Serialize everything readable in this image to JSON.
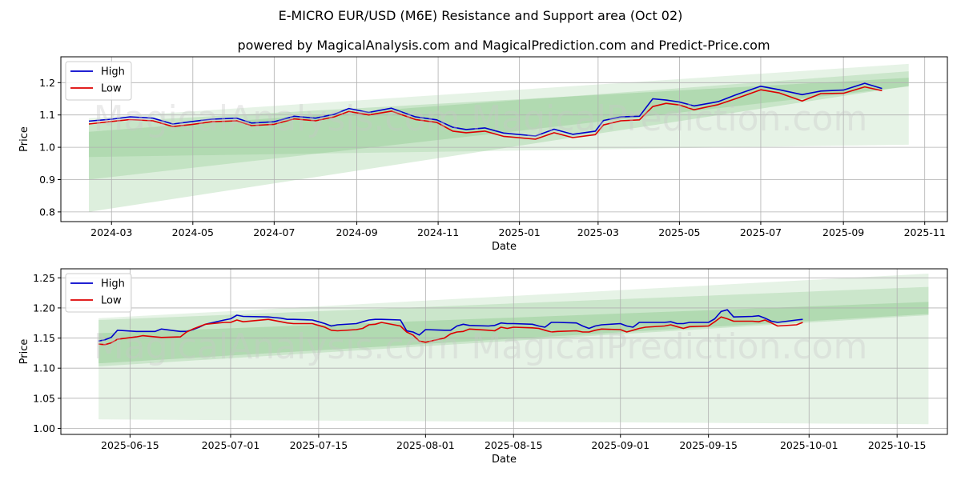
{
  "figure": {
    "title": "E-MICRO EUR/USD (M6E) Resistance and Support area (Oct 02)",
    "subtitle": "powered by MagicalAnalysis.com and MagicalPrediction.com and Predict-Price.com",
    "watermark": "MagicalAnalysis.com   MagicalPrediction.com"
  },
  "colors": {
    "high": "#0000cc",
    "low": "#dd0000",
    "band": "#2e9b2e",
    "grid": "#b0b0b0"
  },
  "chart_data": [
    {
      "type": "line",
      "xlabel": "Date",
      "ylabel": "Price",
      "grid": true,
      "legend": "top-left",
      "legend_entries": [
        "High",
        "Low"
      ],
      "xlim": [
        "2024-01-23",
        "2025-11-18"
      ],
      "ylim": [
        0.77,
        1.28
      ],
      "x_ticks": [
        "2024-03-01",
        "2024-05-01",
        "2024-07-01",
        "2024-09-01",
        "2024-11-01",
        "2025-01-01",
        "2025-03-01",
        "2025-05-01",
        "2025-07-01",
        "2025-09-01",
        "2025-11-01"
      ],
      "x_tick_labels": [
        "2024-03",
        "2024-05",
        "2024-07",
        "2024-09",
        "2024-11",
        "2025-01",
        "2025-03",
        "2025-05",
        "2025-07",
        "2025-09",
        "2025-11"
      ],
      "y_ticks": [
        0.8,
        0.9,
        1.0,
        1.1,
        1.2
      ],
      "y_tick_labels": [
        "0.8",
        "0.9",
        "1.0",
        "1.1",
        "1.2"
      ],
      "bands": [
        {
          "x": [
            "2024-02-13",
            "2025-10-20"
          ],
          "upper": [
            1.09,
            1.258
          ],
          "lower": [
            0.97,
            1.008
          ]
        },
        {
          "x": [
            "2024-02-13",
            "2025-10-20"
          ],
          "upper": [
            1.048,
            1.235
          ],
          "lower": [
            0.9,
            1.188
          ]
        },
        {
          "x": [
            "2024-02-13",
            "2025-10-20"
          ],
          "upper": [
            1.075,
            1.215
          ],
          "lower": [
            0.8,
            1.19
          ]
        }
      ],
      "series": [
        {
          "name": "High",
          "x": [
            "2024-02-13",
            "2024-03-01",
            "2024-03-15",
            "2024-04-01",
            "2024-04-16",
            "2024-05-01",
            "2024-05-15",
            "2024-06-03",
            "2024-06-14",
            "2024-07-01",
            "2024-07-16",
            "2024-08-01",
            "2024-08-15",
            "2024-08-26",
            "2024-09-10",
            "2024-09-27",
            "2024-10-15",
            "2024-10-31",
            "2024-11-12",
            "2024-11-22",
            "2024-12-06",
            "2024-12-20",
            "2025-01-13",
            "2025-01-27",
            "2025-02-10",
            "2025-02-27",
            "2025-03-05",
            "2025-03-18",
            "2025-04-01",
            "2025-04-11",
            "2025-04-21",
            "2025-05-01",
            "2025-05-12",
            "2025-05-30",
            "2025-06-12",
            "2025-07-01",
            "2025-07-15",
            "2025-08-01",
            "2025-08-15",
            "2025-09-01",
            "2025-09-17",
            "2025-09-30"
          ],
          "values": [
            1.081,
            1.087,
            1.094,
            1.09,
            1.072,
            1.08,
            1.087,
            1.09,
            1.075,
            1.079,
            1.096,
            1.09,
            1.102,
            1.12,
            1.108,
            1.121,
            1.094,
            1.085,
            1.062,
            1.055,
            1.06,
            1.044,
            1.035,
            1.056,
            1.04,
            1.05,
            1.083,
            1.094,
            1.096,
            1.15,
            1.146,
            1.14,
            1.128,
            1.141,
            1.162,
            1.189,
            1.178,
            1.163,
            1.174,
            1.177,
            1.198,
            1.182
          ]
        },
        {
          "name": "Low",
          "x": [
            "2024-02-13",
            "2024-03-01",
            "2024-03-15",
            "2024-04-01",
            "2024-04-16",
            "2024-05-01",
            "2024-05-15",
            "2024-06-03",
            "2024-06-14",
            "2024-07-01",
            "2024-07-16",
            "2024-08-01",
            "2024-08-15",
            "2024-08-26",
            "2024-09-10",
            "2024-09-27",
            "2024-10-15",
            "2024-10-31",
            "2024-11-12",
            "2024-11-22",
            "2024-12-06",
            "2024-12-20",
            "2025-01-13",
            "2025-01-27",
            "2025-02-10",
            "2025-02-27",
            "2025-03-05",
            "2025-03-18",
            "2025-04-01",
            "2025-04-11",
            "2025-04-21",
            "2025-05-01",
            "2025-05-12",
            "2025-05-30",
            "2025-06-12",
            "2025-07-01",
            "2025-07-15",
            "2025-08-01",
            "2025-08-15",
            "2025-09-01",
            "2025-09-17",
            "2025-09-30"
          ],
          "values": [
            1.072,
            1.08,
            1.086,
            1.082,
            1.064,
            1.071,
            1.079,
            1.082,
            1.067,
            1.071,
            1.088,
            1.082,
            1.094,
            1.111,
            1.1,
            1.112,
            1.086,
            1.077,
            1.05,
            1.045,
            1.05,
            1.034,
            1.025,
            1.045,
            1.03,
            1.039,
            1.069,
            1.082,
            1.085,
            1.126,
            1.136,
            1.131,
            1.116,
            1.132,
            1.15,
            1.178,
            1.168,
            1.143,
            1.166,
            1.167,
            1.187,
            1.175
          ]
        }
      ]
    },
    {
      "type": "line",
      "xlabel": "Date",
      "ylabel": "Price",
      "grid": true,
      "legend": "top-left",
      "legend_entries": [
        "High",
        "Low"
      ],
      "xlim": [
        "2025-06-04",
        "2025-10-23"
      ],
      "ylim": [
        0.99,
        1.265
      ],
      "x_ticks": [
        "2025-06-15",
        "2025-07-01",
        "2025-07-15",
        "2025-08-01",
        "2025-08-15",
        "2025-09-01",
        "2025-09-15",
        "2025-10-01",
        "2025-10-15"
      ],
      "x_tick_labels": [
        "2025-06-15",
        "2025-07-01",
        "2025-07-15",
        "2025-08-01",
        "2025-08-15",
        "2025-09-01",
        "2025-09-15",
        "2025-10-01",
        "2025-10-15"
      ],
      "y_ticks": [
        1.0,
        1.05,
        1.1,
        1.15,
        1.2,
        1.25
      ],
      "y_tick_labels": [
        "1.00",
        "1.05",
        "1.10",
        "1.15",
        "1.20",
        "1.25"
      ],
      "bands": [
        {
          "x": [
            "2025-06-10",
            "2025-10-20"
          ],
          "upper": [
            1.183,
            1.257
          ],
          "lower": [
            1.015,
            1.007
          ]
        },
        {
          "x": [
            "2025-06-10",
            "2025-10-20"
          ],
          "upper": [
            1.18,
            1.235
          ],
          "lower": [
            1.103,
            1.188
          ]
        },
        {
          "x": [
            "2025-06-10",
            "2025-10-20"
          ],
          "upper": [
            1.158,
            1.21
          ],
          "lower": [
            1.108,
            1.19
          ]
        }
      ],
      "series": [
        {
          "name": "High",
          "x": [
            "2025-06-10",
            "2025-06-11",
            "2025-06-12",
            "2025-06-13",
            "2025-06-16",
            "2025-06-17",
            "2025-06-18",
            "2025-06-19",
            "2025-06-20",
            "2025-06-23",
            "2025-06-24",
            "2025-06-25",
            "2025-06-26",
            "2025-06-27",
            "2025-06-30",
            "2025-07-01",
            "2025-07-02",
            "2025-07-03",
            "2025-07-07",
            "2025-07-08",
            "2025-07-09",
            "2025-07-10",
            "2025-07-11",
            "2025-07-14",
            "2025-07-15",
            "2025-07-16",
            "2025-07-17",
            "2025-07-18",
            "2025-07-21",
            "2025-07-22",
            "2025-07-23",
            "2025-07-24",
            "2025-07-25",
            "2025-07-28",
            "2025-07-29",
            "2025-07-30",
            "2025-07-31",
            "2025-08-01",
            "2025-08-04",
            "2025-08-05",
            "2025-08-06",
            "2025-08-07",
            "2025-08-08",
            "2025-08-11",
            "2025-08-12",
            "2025-08-13",
            "2025-08-14",
            "2025-08-15",
            "2025-08-18",
            "2025-08-19",
            "2025-08-20",
            "2025-08-21",
            "2025-08-22",
            "2025-08-25",
            "2025-08-26",
            "2025-08-27",
            "2025-08-28",
            "2025-08-29",
            "2025-09-01",
            "2025-09-02",
            "2025-09-03",
            "2025-09-04",
            "2025-09-05",
            "2025-09-08",
            "2025-09-09",
            "2025-09-10",
            "2025-09-11",
            "2025-09-12",
            "2025-09-15",
            "2025-09-16",
            "2025-09-17",
            "2025-09-18",
            "2025-09-19",
            "2025-09-22",
            "2025-09-23",
            "2025-09-24",
            "2025-09-25",
            "2025-09-26",
            "2025-09-29",
            "2025-09-30"
          ],
          "values": [
            1.145,
            1.147,
            1.151,
            1.163,
            1.161,
            1.161,
            1.161,
            1.161,
            1.165,
            1.161,
            1.161,
            1.164,
            1.168,
            1.173,
            1.18,
            1.182,
            1.188,
            1.186,
            1.185,
            1.184,
            1.183,
            1.181,
            1.181,
            1.18,
            1.177,
            1.174,
            1.17,
            1.172,
            1.174,
            1.177,
            1.18,
            1.181,
            1.181,
            1.18,
            1.162,
            1.16,
            1.155,
            1.164,
            1.163,
            1.163,
            1.17,
            1.173,
            1.171,
            1.17,
            1.171,
            1.175,
            1.174,
            1.174,
            1.173,
            1.17,
            1.168,
            1.176,
            1.176,
            1.175,
            1.17,
            1.166,
            1.17,
            1.172,
            1.174,
            1.17,
            1.168,
            1.176,
            1.176,
            1.176,
            1.177,
            1.174,
            1.174,
            1.176,
            1.176,
            1.182,
            1.194,
            1.197,
            1.185,
            1.186,
            1.187,
            1.183,
            1.178,
            1.176,
            1.18,
            1.181
          ]
        },
        {
          "name": "Low",
          "x": [
            "2025-06-10",
            "2025-06-11",
            "2025-06-12",
            "2025-06-13",
            "2025-06-16",
            "2025-06-17",
            "2025-06-18",
            "2025-06-19",
            "2025-06-20",
            "2025-06-23",
            "2025-06-24",
            "2025-06-25",
            "2025-06-26",
            "2025-06-27",
            "2025-06-30",
            "2025-07-01",
            "2025-07-02",
            "2025-07-03",
            "2025-07-07",
            "2025-07-08",
            "2025-07-09",
            "2025-07-10",
            "2025-07-11",
            "2025-07-14",
            "2025-07-15",
            "2025-07-16",
            "2025-07-17",
            "2025-07-18",
            "2025-07-21",
            "2025-07-22",
            "2025-07-23",
            "2025-07-24",
            "2025-07-25",
            "2025-07-28",
            "2025-07-29",
            "2025-07-30",
            "2025-07-31",
            "2025-08-01",
            "2025-08-04",
            "2025-08-05",
            "2025-08-06",
            "2025-08-07",
            "2025-08-08",
            "2025-08-11",
            "2025-08-12",
            "2025-08-13",
            "2025-08-14",
            "2025-08-15",
            "2025-08-18",
            "2025-08-19",
            "2025-08-20",
            "2025-08-21",
            "2025-08-22",
            "2025-08-25",
            "2025-08-26",
            "2025-08-27",
            "2025-08-28",
            "2025-08-29",
            "2025-09-01",
            "2025-09-02",
            "2025-09-03",
            "2025-09-04",
            "2025-09-05",
            "2025-09-08",
            "2025-09-09",
            "2025-09-10",
            "2025-09-11",
            "2025-09-12",
            "2025-09-15",
            "2025-09-16",
            "2025-09-17",
            "2025-09-18",
            "2025-09-19",
            "2025-09-22",
            "2025-09-23",
            "2025-09-24",
            "2025-09-25",
            "2025-09-26",
            "2025-09-29",
            "2025-09-30"
          ],
          "values": [
            1.14,
            1.139,
            1.142,
            1.148,
            1.152,
            1.154,
            1.153,
            1.152,
            1.151,
            1.152,
            1.16,
            1.165,
            1.169,
            1.173,
            1.176,
            1.176,
            1.18,
            1.177,
            1.181,
            1.179,
            1.177,
            1.175,
            1.174,
            1.174,
            1.171,
            1.168,
            1.163,
            1.162,
            1.164,
            1.166,
            1.172,
            1.173,
            1.176,
            1.17,
            1.16,
            1.155,
            1.145,
            1.143,
            1.15,
            1.157,
            1.16,
            1.161,
            1.165,
            1.163,
            1.162,
            1.168,
            1.166,
            1.168,
            1.167,
            1.166,
            1.163,
            1.16,
            1.161,
            1.162,
            1.16,
            1.16,
            1.163,
            1.165,
            1.164,
            1.16,
            1.163,
            1.166,
            1.168,
            1.17,
            1.172,
            1.169,
            1.166,
            1.169,
            1.17,
            1.177,
            1.185,
            1.182,
            1.178,
            1.178,
            1.177,
            1.18,
            1.175,
            1.17,
            1.172,
            1.176
          ]
        }
      ]
    }
  ]
}
